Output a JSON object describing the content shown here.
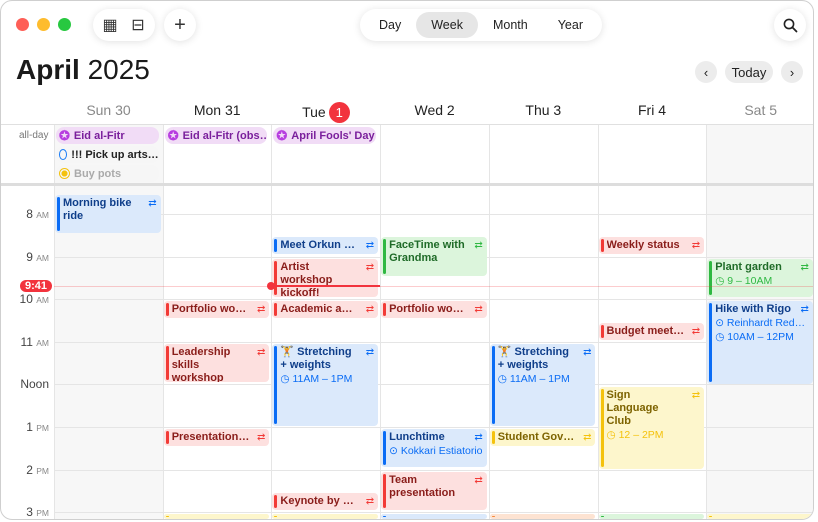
{
  "toolbar": {
    "views": [
      "Day",
      "Week",
      "Month",
      "Year"
    ],
    "active_view": "Week",
    "today_label": "Today",
    "icons": [
      "calendar-list-icon",
      "inbox-icon",
      "plus-icon",
      "search-icon",
      "chevron-left-icon",
      "chevron-right-icon"
    ]
  },
  "header": {
    "month": "April",
    "year": "2025"
  },
  "days": [
    {
      "label": "Sun 30",
      "weekend": true
    },
    {
      "label": "Mon 31"
    },
    {
      "label": "Tue",
      "badge": "1",
      "today": true
    },
    {
      "label": "Wed 2"
    },
    {
      "label": "Thu 3"
    },
    {
      "label": "Fri 4"
    },
    {
      "label": "Sat 5",
      "weekend": true
    }
  ],
  "allday": {
    "label": "all-day",
    "events": [
      {
        "day": 0,
        "row": 0,
        "title": "Eid al-Fitr",
        "kind": "holiday"
      },
      {
        "day": 0,
        "row": 1,
        "title": "!!! Pick up arts…",
        "kind": "reminder"
      },
      {
        "day": 0,
        "row": 2,
        "title": "Buy pots",
        "kind": "done"
      },
      {
        "day": 1,
        "row": 0,
        "title": "Eid al-Fitr (obs…",
        "kind": "holiday"
      },
      {
        "day": 2,
        "row": 0,
        "title": "April Fools' Day",
        "kind": "holiday"
      }
    ]
  },
  "hours": [
    {
      "n": "8",
      "s": "AM"
    },
    {
      "n": "9",
      "s": "AM"
    },
    {
      "n": "10",
      "s": "AM"
    },
    {
      "n": "11",
      "s": "AM"
    },
    {
      "n": "Noon",
      "s": ""
    },
    {
      "n": "1",
      "s": "PM"
    },
    {
      "n": "2",
      "s": "PM"
    },
    {
      "n": "3",
      "s": "PM"
    }
  ],
  "now": {
    "label": "9:41",
    "hour": 9.683,
    "day": 2
  },
  "colors": {
    "blue": [
      "#dbe9fb",
      "#0a6cf5",
      "#0f3e8a"
    ],
    "red": [
      "#fde0df",
      "#f23a36",
      "#8a1d1a"
    ],
    "green": [
      "#dcf5dc",
      "#2fb842",
      "#1f6b28"
    ],
    "yellow": [
      "#fdf6cc",
      "#f4c20d",
      "#7d6300"
    ],
    "orange": [
      "#fde3d2",
      "#f58a3d",
      "#8a4a1a"
    ],
    "purple": "#f1dcf6",
    "accent": "#f2333d"
  },
  "events": [
    {
      "day": 0,
      "start": 7.55,
      "end": 8.45,
      "title": "Morning bike ride",
      "color": "blue",
      "repeat": true
    },
    {
      "day": 2,
      "start": 8.55,
      "end": 8.95,
      "title": "Meet Orkun fo…",
      "color": "blue",
      "repeat": true
    },
    {
      "day": 2,
      "start": 9.05,
      "end": 9.95,
      "title": "Artist workshop kickoff!",
      "color": "red",
      "repeat": true
    },
    {
      "day": 3,
      "start": 8.55,
      "end": 9.45,
      "title": "FaceTime with Grandma",
      "color": "green",
      "repeat": true
    },
    {
      "day": 5,
      "start": 8.55,
      "end": 8.95,
      "title": "Weekly status",
      "color": "red",
      "repeat": true
    },
    {
      "day": 6,
      "start": 9.05,
      "end": 9.95,
      "title": "Plant garden",
      "time": "9 – 10AM",
      "color": "green",
      "repeat": true
    },
    {
      "day": 1,
      "start": 10.05,
      "end": 10.45,
      "title": "Portfolio work…",
      "color": "red",
      "repeat": true
    },
    {
      "day": 2,
      "start": 10.05,
      "end": 10.45,
      "title": "Academic advi…",
      "color": "red",
      "repeat": true
    },
    {
      "day": 3,
      "start": 10.05,
      "end": 10.45,
      "title": "Portfolio work…",
      "color": "red",
      "repeat": true
    },
    {
      "day": 5,
      "start": 10.55,
      "end": 10.95,
      "title": "Budget meeting",
      "color": "red",
      "repeat": true
    },
    {
      "day": 6,
      "start": 10.05,
      "end": 11.98,
      "title": "Hike with Rigo",
      "location": "Reinhardt Red…",
      "time": "10AM – 12PM",
      "color": "blue",
      "repeat": true
    },
    {
      "day": 1,
      "start": 11.05,
      "end": 11.95,
      "title": "Leadership skills workshop",
      "color": "red",
      "repeat": true
    },
    {
      "day": 2,
      "start": 11.05,
      "end": 12.98,
      "title": "🏋 Stretching + weights",
      "time": "11AM – 1PM",
      "color": "blue",
      "repeat": true
    },
    {
      "day": 4,
      "start": 11.05,
      "end": 12.98,
      "title": "🏋 Stretching + weights",
      "time": "11AM – 1PM",
      "color": "blue",
      "repeat": true
    },
    {
      "day": 5,
      "start": 12.05,
      "end": 13.98,
      "title": "Sign Language Club",
      "time": "12 – 2PM",
      "color": "yellow",
      "repeat": true
    },
    {
      "day": 1,
      "start": 13.05,
      "end": 13.45,
      "title": "Presentation p…",
      "color": "red",
      "repeat": true
    },
    {
      "day": 3,
      "start": 13.05,
      "end": 13.95,
      "title": "Lunchtime",
      "location": "Kokkari Estiatorio",
      "color": "blue",
      "repeat": true
    },
    {
      "day": 4,
      "start": 13.05,
      "end": 13.45,
      "title": "Student Gover…",
      "color": "yellow",
      "repeat": true
    },
    {
      "day": 3,
      "start": 14.05,
      "end": 14.95,
      "title": "Team presentation",
      "color": "red",
      "repeat": true
    },
    {
      "day": 2,
      "start": 14.55,
      "end": 14.95,
      "title": "Keynote by Ja…",
      "color": "red",
      "repeat": true
    },
    {
      "day": 1,
      "start": 15.05,
      "end": 15.9,
      "title": "",
      "color": "yellow"
    },
    {
      "day": 2,
      "start": 15.05,
      "end": 15.9,
      "title": "",
      "color": "yellow"
    },
    {
      "day": 3,
      "start": 15.05,
      "end": 15.9,
      "title": "",
      "color": "blue"
    },
    {
      "day": 4,
      "start": 15.05,
      "end": 15.9,
      "title": "",
      "color": "orange"
    },
    {
      "day": 5,
      "start": 15.05,
      "end": 15.9,
      "title": "",
      "color": "green"
    },
    {
      "day": 6,
      "start": 15.05,
      "end": 15.9,
      "title": "",
      "color": "yellow"
    }
  ]
}
